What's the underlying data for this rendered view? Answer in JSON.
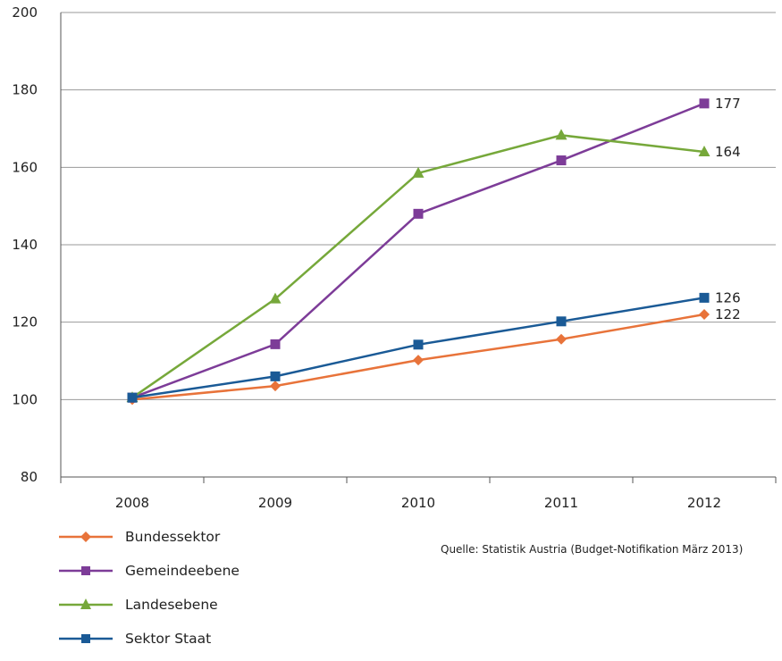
{
  "chart_data": {
    "type": "line",
    "categories": [
      "2008",
      "2009",
      "2010",
      "2011",
      "2012"
    ],
    "ylim": [
      80,
      200
    ],
    "yticks": [
      80,
      100,
      120,
      140,
      160,
      180,
      200
    ],
    "grid": "horizontal",
    "legend_position": "bottom-left",
    "series": [
      {
        "name": "Bundessektor",
        "color": "#e8733a",
        "marker": "diamond",
        "values": [
          100,
          103.5,
          110.2,
          115.6,
          122
        ],
        "end_label": "122"
      },
      {
        "name": "Gemeindeebene",
        "color": "#7d3c98",
        "marker": "square",
        "values": [
          100.5,
          114.3,
          148,
          161.8,
          176.5
        ],
        "end_label": "177"
      },
      {
        "name": "Landesebene",
        "color": "#76a83a",
        "marker": "triangle",
        "values": [
          100.5,
          126,
          158.5,
          168.3,
          164
        ],
        "end_label": "164"
      },
      {
        "name": "Sektor Staat",
        "color": "#1a5a96",
        "marker": "square",
        "values": [
          100.5,
          106,
          114.2,
          120.2,
          126.3
        ],
        "end_label": "126"
      }
    ]
  },
  "source": "Quelle: Statistik Austria (Budget-Notifikation März 2013)"
}
